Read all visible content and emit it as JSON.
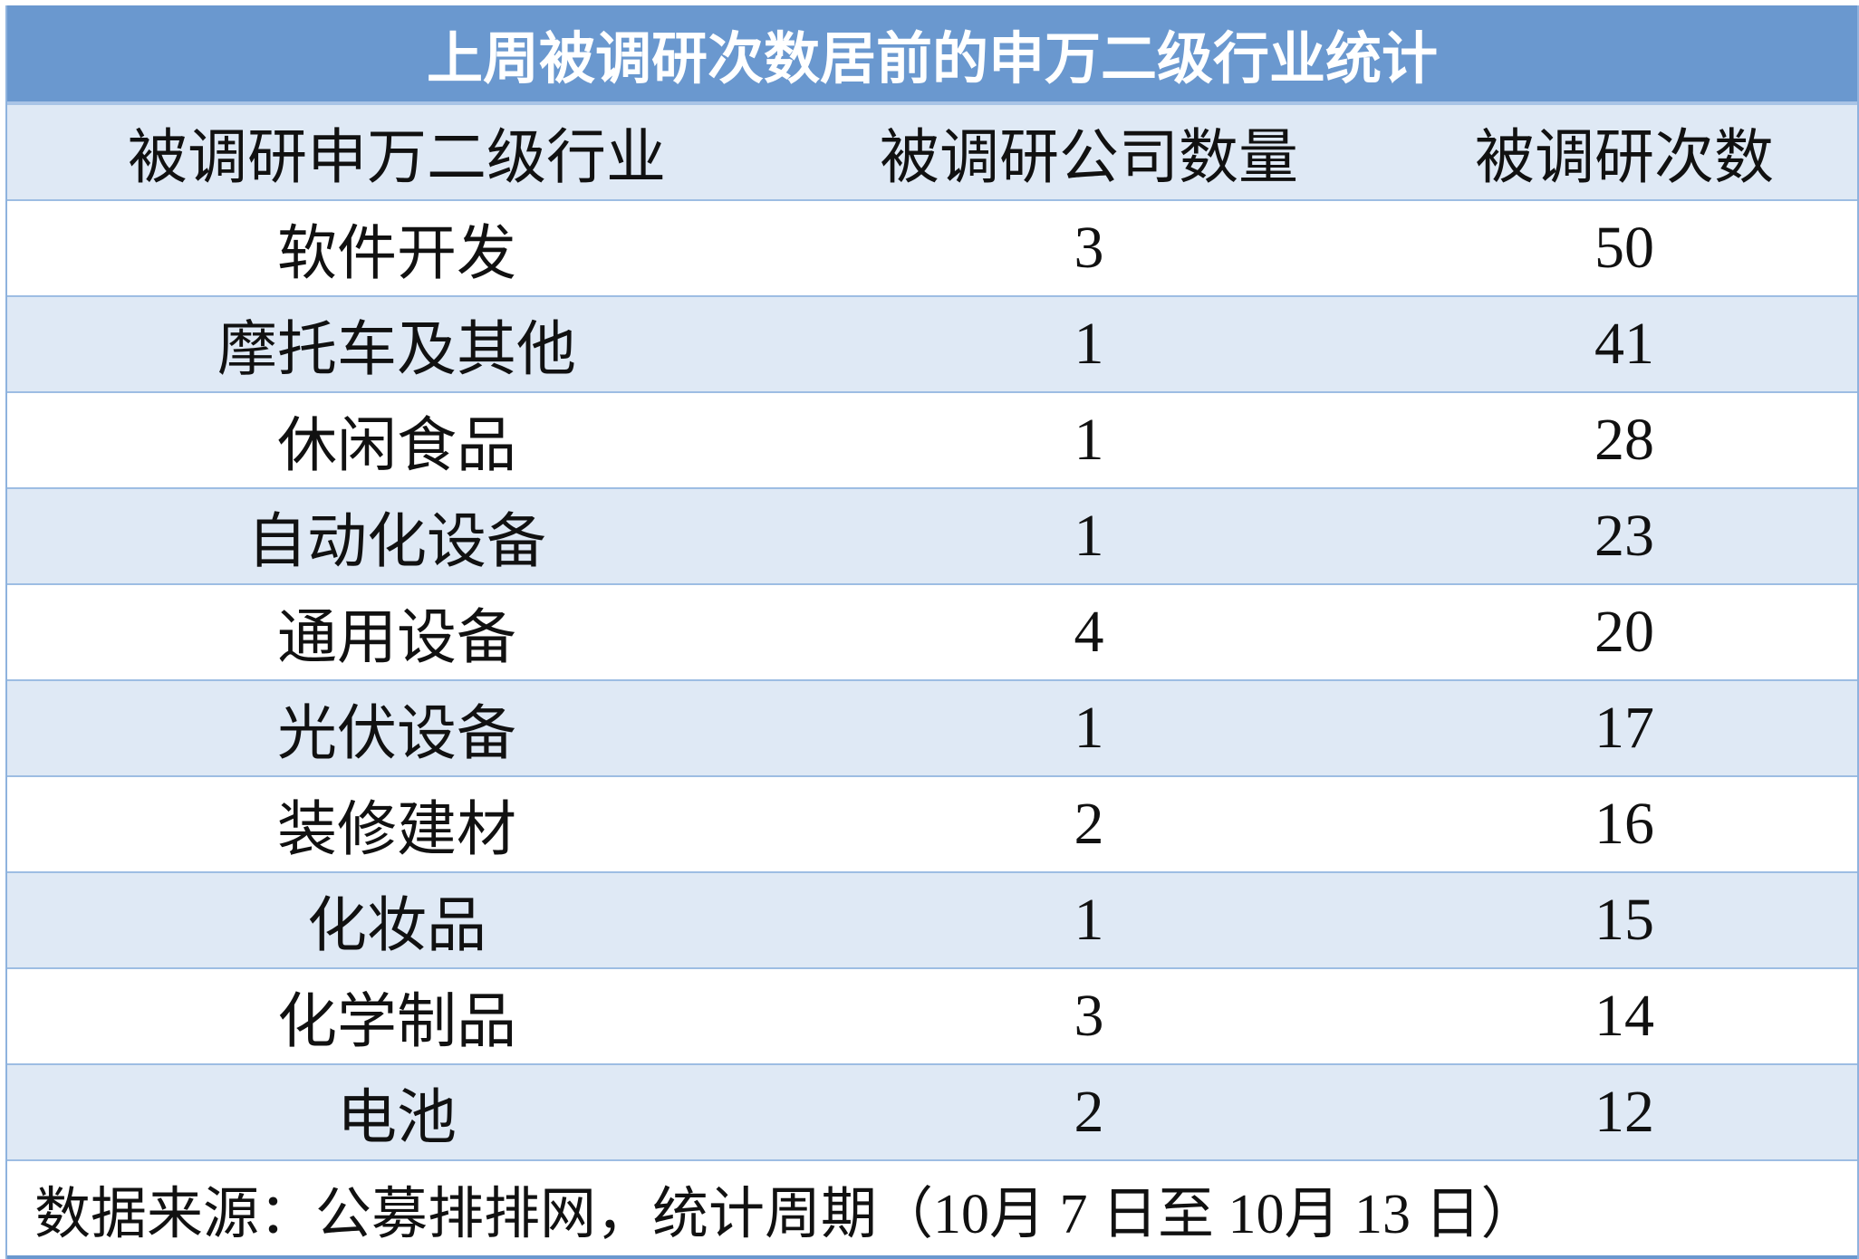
{
  "title": "上周被调研次数居前的申万二级行业统计",
  "columns": [
    "被调研申万二级行业",
    "被调研公司数量",
    "被调研次数"
  ],
  "rows": [
    {
      "industry": "软件开发",
      "companies": "3",
      "surveys": "50"
    },
    {
      "industry": "摩托车及其他",
      "companies": "1",
      "surveys": "41"
    },
    {
      "industry": "休闲食品",
      "companies": "1",
      "surveys": "28"
    },
    {
      "industry": "自动化设备",
      "companies": "1",
      "surveys": "23"
    },
    {
      "industry": "通用设备",
      "companies": "4",
      "surveys": "20"
    },
    {
      "industry": "光伏设备",
      "companies": "1",
      "surveys": "17"
    },
    {
      "industry": "装修建材",
      "companies": "2",
      "surveys": "16"
    },
    {
      "industry": "化妆品",
      "companies": "1",
      "surveys": "15"
    },
    {
      "industry": "化学制品",
      "companies": "3",
      "surveys": "14"
    },
    {
      "industry": "电池",
      "companies": "2",
      "surveys": "12"
    }
  ],
  "footer": "数据来源：公募排排网，统计周期（10月 7 日至 10月 13 日）",
  "colors": {
    "title_bg": "#6a98cf",
    "alt_row_bg": "#dfe9f5",
    "border": "#9dbde3"
  }
}
